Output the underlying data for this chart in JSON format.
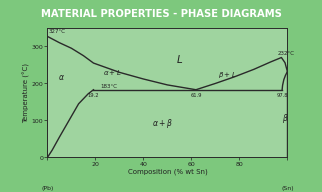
{
  "title": "MATERIAL PROPERTIES - PHASE DIAGRAMS",
  "title_bg": "#4a8f52",
  "title_color": "#ffffff",
  "outer_bg": "#7dc87d",
  "plot_bg": "#9fd49f",
  "xlabel": "Composition (% wt Sn)",
  "ylabel": "Temperature (°C)",
  "xlim": [
    0,
    100
  ],
  "ylim": [
    0,
    350
  ],
  "pb_melt": 327,
  "sn_melt": 232,
  "eutectic_temp": 183,
  "eutectic_comp": 61.9,
  "alpha_eu_x": 19.2,
  "beta_eu_x": 97.8,
  "line_color": "#2a2a2a",
  "line_width": 1.0,
  "font_color": "#222222",
  "label_fs": 5.0,
  "annot_fs": 4.0,
  "axis_fs": 4.5,
  "title_fs": 7.2
}
